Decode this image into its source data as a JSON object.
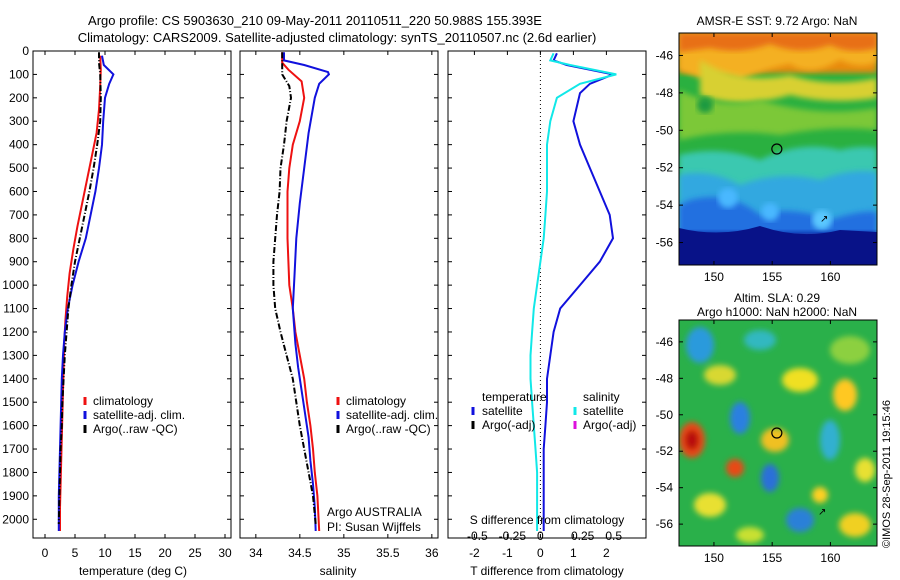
{
  "title_line1": "Argo profile: CS 5903630_210 09-May-2011 20110511_220 50.988S 155.393E",
  "title_line2": "Climatology: CARS2009. Satellite-adjusted climatology: synTS_20110507.nc (2.6d earlier)",
  "depth_ticks": [
    "0",
    "100",
    "200",
    "300",
    "400",
    "500",
    "600",
    "700",
    "800",
    "900",
    "1000",
    "1100",
    "1200",
    "1300",
    "1400",
    "1500",
    "1600",
    "1700",
    "1800",
    "1900",
    "2000"
  ],
  "colors": {
    "climatology": "#ee1111",
    "satellite": "#1111dd",
    "argo": "#000000",
    "cyan": "#11e8e8",
    "magenta": "#dd11dd"
  },
  "chart_data": [
    {
      "type": "line",
      "xlabel": "temperature (deg C)",
      "xticks": [
        "0",
        "5",
        "10",
        "15",
        "20",
        "25",
        "30"
      ],
      "xlim": [
        -2,
        31
      ],
      "ylim": [
        0,
        2080
      ],
      "legend": [
        "climatology",
        "satellite-adj. clim.",
        "Argo(..raw -QC)"
      ],
      "series": [
        {
          "name": "climatology",
          "points": [
            [
              9.2,
              20
            ],
            [
              9.3,
              80
            ],
            [
              9.2,
              150
            ],
            [
              9.0,
              250
            ],
            [
              8.6,
              350
            ],
            [
              7.8,
              450
            ],
            [
              7.0,
              550
            ],
            [
              6.2,
              650
            ],
            [
              5.4,
              750
            ],
            [
              4.7,
              850
            ],
            [
              4.1,
              950
            ],
            [
              3.7,
              1050
            ],
            [
              3.4,
              1150
            ],
            [
              3.2,
              1250
            ],
            [
              3.1,
              1350
            ],
            [
              3.0,
              1450
            ],
            [
              2.9,
              1550
            ],
            [
              2.8,
              1650
            ],
            [
              2.7,
              1750
            ],
            [
              2.6,
              1850
            ],
            [
              2.5,
              1950
            ],
            [
              2.5,
              2050
            ]
          ]
        },
        {
          "name": "satellite-adj. clim.",
          "points": [
            [
              9.5,
              20
            ],
            [
              9.8,
              60
            ],
            [
              11.4,
              100
            ],
            [
              10.7,
              140
            ],
            [
              10.0,
              200
            ],
            [
              9.7,
              300
            ],
            [
              9.5,
              400
            ],
            [
              9.0,
              500
            ],
            [
              8.4,
              600
            ],
            [
              7.6,
              700
            ],
            [
              6.8,
              800
            ],
            [
              5.6,
              900
            ],
            [
              4.6,
              1000
            ],
            [
              3.8,
              1100
            ],
            [
              3.3,
              1200
            ],
            [
              3.0,
              1300
            ],
            [
              2.8,
              1400
            ],
            [
              2.7,
              1500
            ],
            [
              2.6,
              1600
            ],
            [
              2.5,
              1700
            ],
            [
              2.4,
              1800
            ],
            [
              2.3,
              1900
            ],
            [
              2.3,
              2050
            ]
          ]
        },
        {
          "name": "Argo(..raw -QC)",
          "points": [
            [
              9.0,
              5
            ],
            [
              9.0,
              50
            ],
            [
              9.2,
              100
            ],
            [
              9.3,
              200
            ],
            [
              9.2,
              300
            ],
            [
              8.7,
              400
            ],
            [
              8.1,
              500
            ],
            [
              7.4,
              600
            ],
            [
              6.6,
              700
            ],
            [
              5.8,
              800
            ],
            [
              5.0,
              900
            ],
            [
              4.4,
              1000
            ],
            [
              3.9,
              1100
            ],
            [
              3.6,
              1200
            ],
            [
              3.3,
              1300
            ],
            [
              3.1,
              1400
            ],
            [
              2.9,
              1500
            ],
            [
              2.8,
              1600
            ],
            [
              2.6,
              1700
            ],
            [
              2.5,
              1800
            ],
            [
              2.4,
              1900
            ],
            [
              2.3,
              2020
            ]
          ]
        }
      ]
    },
    {
      "type": "line",
      "xlabel": "salinity",
      "xticks": [
        "34",
        "34.5",
        "35",
        "35.5",
        "36"
      ],
      "xlim": [
        33.82,
        36.07
      ],
      "ylim": [
        0,
        2080
      ],
      "legend": [
        "climatology",
        "satellite-adj. clim.",
        "Argo(..raw -QC)"
      ],
      "footer": [
        "Argo AUSTRALIA",
        "PI: Susan Wijffels"
      ],
      "series": [
        {
          "name": "climatology",
          "points": [
            [
              34.3,
              5
            ],
            [
              34.3,
              50
            ],
            [
              34.37,
              80
            ],
            [
              34.52,
              130
            ],
            [
              34.55,
              200
            ],
            [
              34.5,
              300
            ],
            [
              34.42,
              400
            ],
            [
              34.38,
              500
            ],
            [
              34.36,
              600
            ],
            [
              34.36,
              700
            ],
            [
              34.36,
              800
            ],
            [
              34.37,
              900
            ],
            [
              34.38,
              1000
            ],
            [
              34.42,
              1100
            ],
            [
              34.45,
              1200
            ],
            [
              34.5,
              1300
            ],
            [
              34.55,
              1400
            ],
            [
              34.58,
              1500
            ],
            [
              34.62,
              1600
            ],
            [
              34.65,
              1700
            ],
            [
              34.67,
              1800
            ],
            [
              34.7,
              1900
            ],
            [
              34.72,
              2050
            ]
          ]
        },
        {
          "name": "satellite-adj. clim.",
          "points": [
            [
              34.32,
              5
            ],
            [
              34.32,
              40
            ],
            [
              34.55,
              60
            ],
            [
              34.82,
              90
            ],
            [
              34.83,
              100
            ],
            [
              34.72,
              140
            ],
            [
              34.67,
              200
            ],
            [
              34.6,
              350
            ],
            [
              34.55,
              500
            ],
            [
              34.5,
              650
            ],
            [
              34.46,
              800
            ],
            [
              34.44,
              950
            ],
            [
              34.42,
              1100
            ],
            [
              34.45,
              1250
            ],
            [
              34.48,
              1350
            ],
            [
              34.52,
              1450
            ],
            [
              34.56,
              1550
            ],
            [
              34.6,
              1650
            ],
            [
              34.62,
              1750
            ],
            [
              34.65,
              1850
            ],
            [
              34.67,
              1950
            ],
            [
              34.68,
              2050
            ]
          ]
        },
        {
          "name": "Argo(..raw -QC)",
          "points": [
            [
              34.3,
              5
            ],
            [
              34.3,
              60
            ],
            [
              34.3,
              100
            ],
            [
              34.38,
              150
            ],
            [
              34.4,
              200
            ],
            [
              34.35,
              300
            ],
            [
              34.32,
              400
            ],
            [
              34.28,
              500
            ],
            [
              34.27,
              600
            ],
            [
              34.24,
              700
            ],
            [
              34.22,
              800
            ],
            [
              34.2,
              900
            ],
            [
              34.2,
              1000
            ],
            [
              34.22,
              1100
            ],
            [
              34.28,
              1200
            ],
            [
              34.35,
              1300
            ],
            [
              34.42,
              1400
            ],
            [
              34.46,
              1500
            ],
            [
              34.5,
              1600
            ],
            [
              34.55,
              1700
            ],
            [
              34.6,
              1800
            ],
            [
              34.65,
              1900
            ],
            [
              34.68,
              2020
            ]
          ]
        }
      ]
    },
    {
      "type": "line",
      "xlabel": "T difference from climatology",
      "xlabel_top": "S difference from climatology",
      "xticks": [
        "-2",
        "-1",
        "0",
        "1",
        "2"
      ],
      "xticks_s": [
        "-0.5",
        "-0.25",
        "0",
        "0.25",
        "0.5"
      ],
      "xlim": [
        -2.8,
        3.2
      ],
      "ylim": [
        0,
        2080
      ],
      "legend": {
        "temperature": "temperature",
        "salinity": "salinity",
        "satellite": "satellite",
        "argo": "Argo(-adj)"
      },
      "series": [
        {
          "name": "satellite",
          "quantity": "temperature",
          "points": [
            [
              0.5,
              10
            ],
            [
              0.4,
              40
            ],
            [
              0.8,
              60
            ],
            [
              2.2,
              100
            ],
            [
              1.5,
              140
            ],
            [
              1.2,
              180
            ],
            [
              1.0,
              300
            ],
            [
              1.2,
              400
            ],
            [
              1.5,
              500
            ],
            [
              1.8,
              600
            ],
            [
              2.1,
              700
            ],
            [
              2.2,
              800
            ],
            [
              1.8,
              900
            ],
            [
              1.2,
              1000
            ],
            [
              0.6,
              1100
            ],
            [
              0.4,
              1200
            ],
            [
              0.3,
              1300
            ],
            [
              0.2,
              1400
            ],
            [
              0.2,
              1500
            ],
            [
              0.15,
              1600
            ],
            [
              0.1,
              1700
            ],
            [
              0.1,
              1800
            ],
            [
              0.1,
              1900
            ],
            [
              0.1,
              2050
            ]
          ]
        },
        {
          "name": "satellite",
          "quantity": "salinity",
          "points": [
            [
              0.4,
              10
            ],
            [
              0.3,
              40
            ],
            [
              0.9,
              60
            ],
            [
              2.3,
              100
            ],
            [
              1.2,
              140
            ],
            [
              0.5,
              200
            ],
            [
              0.3,
              300
            ],
            [
              0.2,
              400
            ],
            [
              0.2,
              500
            ],
            [
              0.2,
              600
            ],
            [
              0.15,
              700
            ],
            [
              0.1,
              800
            ],
            [
              0.0,
              900
            ],
            [
              -0.1,
              1000
            ],
            [
              -0.2,
              1100
            ],
            [
              -0.25,
              1200
            ],
            [
              -0.3,
              1300
            ],
            [
              -0.3,
              1400
            ],
            [
              -0.25,
              1500
            ],
            [
              -0.2,
              1600
            ],
            [
              -0.15,
              1700
            ],
            [
              -0.1,
              1800
            ],
            [
              -0.1,
              1900
            ],
            [
              -0.1,
              2050
            ]
          ]
        }
      ]
    }
  ],
  "sst_map": {
    "title": "AMSR-E SST: 9.72 Argo: NaN",
    "xticks": [
      "150",
      "155",
      "160"
    ],
    "yticks": [
      "-46",
      "-48",
      "-50",
      "-52",
      "-54",
      "-56"
    ],
    "xlim": [
      147,
      164
    ],
    "ylim": [
      -57.2,
      -44.8
    ],
    "marker": [
      155.4,
      -51
    ]
  },
  "sla_map": {
    "title_line1": "Altim. SLA: 0.29",
    "title_line2": "Argo h1000: NaN h2000: NaN",
    "xticks": [
      "150",
      "155",
      "160"
    ],
    "yticks": [
      "-46",
      "-48",
      "-50",
      "-52",
      "-54",
      "-56"
    ],
    "xlim": [
      147,
      164
    ],
    "ylim": [
      -57.2,
      -44.8
    ],
    "marker": [
      155.4,
      -51
    ]
  },
  "copyright": "©IMOS 28-Sep-2011 19:15:46"
}
